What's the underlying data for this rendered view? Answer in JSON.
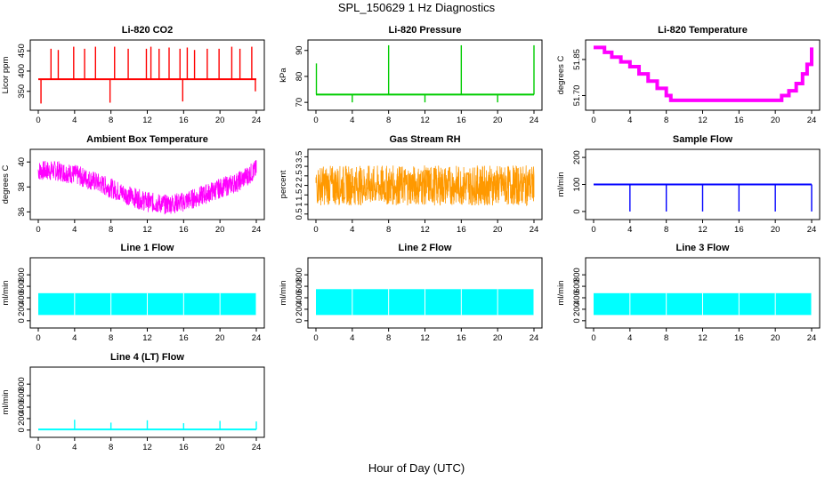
{
  "title": "SPL_150629  1 Hz Diagnostics",
  "xlabel": "Hour of Day (UTC)",
  "chart_data": [
    {
      "type": "line",
      "title": "Li-820 CO2",
      "ylabel": "Licor ppm",
      "color": "#ff0000",
      "xlim": [
        0,
        24
      ],
      "ylim": [
        310,
        470
      ],
      "yticks": [
        350,
        400,
        450
      ],
      "xticks": [
        0,
        4,
        8,
        12,
        16,
        20,
        24
      ],
      "baseline": 380,
      "spikes": [
        [
          0.3,
          320
        ],
        [
          1.4,
          455
        ],
        [
          2.2,
          452
        ],
        [
          3.9,
          460
        ],
        [
          5.1,
          455
        ],
        [
          6.3,
          460
        ],
        [
          7.9,
          322
        ],
        [
          8.4,
          460
        ],
        [
          9.9,
          455
        ],
        [
          11.9,
          455
        ],
        [
          12.4,
          460
        ],
        [
          13.3,
          455
        ],
        [
          14.4,
          458
        ],
        [
          15.6,
          455
        ],
        [
          15.9,
          325
        ],
        [
          16.4,
          458
        ],
        [
          17.2,
          452
        ],
        [
          18.6,
          455
        ],
        [
          19.9,
          455
        ],
        [
          21.3,
          460
        ],
        [
          22.2,
          455
        ],
        [
          23.5,
          460
        ],
        [
          23.9,
          350
        ]
      ]
    },
    {
      "type": "line",
      "title": "Li-820 Pressure",
      "ylabel": "kPa",
      "color": "#00cc00",
      "xlim": [
        0,
        24
      ],
      "ylim": [
        68,
        93
      ],
      "yticks": [
        70,
        80,
        90
      ],
      "xticks": [
        0,
        4,
        8,
        12,
        16,
        20,
        24
      ],
      "baseline": 73,
      "spikes": [
        [
          0.05,
          85
        ],
        [
          4.0,
          70
        ],
        [
          8.0,
          92
        ],
        [
          12.0,
          70
        ],
        [
          16.0,
          92
        ],
        [
          20.0,
          70
        ],
        [
          24.0,
          92
        ]
      ]
    },
    {
      "type": "step",
      "title": "Li-820 Temperature",
      "ylabel": "degrees C",
      "color": "#ff00ff",
      "xlim": [
        0,
        24
      ],
      "ylim": [
        51.65,
        51.92
      ],
      "yticks": [
        51.7,
        51.85
      ],
      "ytick_labels": [
        "51.70",
        "51.85"
      ],
      "xticks": [
        0,
        4,
        8,
        12,
        16,
        20,
        24
      ],
      "x": [
        0.0,
        0.5,
        1.2,
        2.0,
        3.0,
        4.0,
        5.0,
        6.0,
        7.0,
        8.0,
        8.5,
        12,
        16,
        20.0,
        20.7,
        21.5,
        22.3,
        23.0,
        23.5,
        24.0
      ],
      "y": [
        51.9,
        51.9,
        51.88,
        51.86,
        51.84,
        51.82,
        51.79,
        51.76,
        51.73,
        51.7,
        51.68,
        51.68,
        51.68,
        51.68,
        51.7,
        51.72,
        51.75,
        51.79,
        51.83,
        51.9
      ]
    },
    {
      "type": "line",
      "title": "Ambient Box Temperature",
      "ylabel": "degrees C",
      "color": "#ff00ff",
      "xlim": [
        0,
        24
      ],
      "ylim": [
        35.6,
        40.8
      ],
      "yticks": [
        36,
        38,
        40
      ],
      "xticks": [
        0,
        4,
        8,
        12,
        16,
        20,
        24
      ],
      "x": [
        0,
        2,
        4,
        6,
        8,
        10,
        12,
        14,
        16,
        18,
        20,
        22,
        24
      ],
      "y": [
        39.3,
        39.3,
        39.0,
        38.5,
        37.9,
        37.3,
        36.8,
        36.6,
        36.8,
        37.3,
        37.9,
        38.4,
        39.4
      ],
      "spread": 0.9
    },
    {
      "type": "line",
      "title": "Gas Stream RH",
      "ylabel": "percent",
      "color": "#ff9900",
      "xlim": [
        0,
        24
      ],
      "ylim": [
        0.35,
        3.75
      ],
      "yticks": [
        0.5,
        1.0,
        1.5,
        2.0,
        2.5,
        3.0,
        3.5
      ],
      "xticks": [
        0,
        4,
        8,
        12,
        16,
        20,
        24
      ],
      "baseline": 2.0,
      "spread": 1.5
    },
    {
      "type": "line",
      "title": "Sample Flow",
      "ylabel": "ml/min",
      "color": "#0000ff",
      "xlim": [
        0,
        24
      ],
      "ylim": [
        -20,
        220
      ],
      "yticks": [
        0,
        100,
        200
      ],
      "xticks": [
        0,
        4,
        8,
        12,
        16,
        20,
        24
      ],
      "baseline": 100,
      "spikes": [
        [
          4.0,
          0
        ],
        [
          8.0,
          0
        ],
        [
          12.0,
          0
        ],
        [
          16.0,
          0
        ],
        [
          20.0,
          0
        ],
        [
          24.0,
          0
        ]
      ]
    },
    {
      "type": "area",
      "title": "Line 1 Flow",
      "ylabel": "ml/min",
      "color": "#00ffff",
      "xlim": [
        0,
        24
      ],
      "ylim": [
        -80,
        1050
      ],
      "yticks": [
        0,
        200,
        400,
        600,
        800
      ],
      "xticks": [
        0,
        4,
        8,
        12,
        16,
        20,
        24
      ],
      "band": [
        100,
        480
      ],
      "gaps": [
        4.0,
        8.0,
        12.0,
        16.0,
        20.0,
        24.0
      ]
    },
    {
      "type": "area",
      "title": "Line 2 Flow",
      "ylabel": "ml/min",
      "color": "#00ffff",
      "xlim": [
        0,
        24
      ],
      "ylim": [
        -80,
        1050
      ],
      "yticks": [
        0,
        200,
        400,
        600,
        800
      ],
      "xticks": [
        0,
        4,
        8,
        12,
        16,
        20,
        24
      ],
      "band": [
        100,
        550
      ],
      "gaps": [
        4.0,
        8.0,
        12.0,
        16.0,
        20.0,
        24.0
      ]
    },
    {
      "type": "area",
      "title": "Line 3 Flow",
      "ylabel": "ml/min",
      "color": "#00ffff",
      "xlim": [
        0,
        24
      ],
      "ylim": [
        -80,
        1050
      ],
      "yticks": [
        0,
        200,
        400,
        600,
        800
      ],
      "xticks": [
        0,
        4,
        8,
        12,
        16,
        20,
        24
      ],
      "band": [
        100,
        480
      ],
      "gaps": [
        4.0,
        8.0,
        12.0,
        16.0,
        20.0,
        24.0
      ]
    },
    {
      "type": "line",
      "title": "Line 4 (LT) Flow",
      "ylabel": "ml/min",
      "color": "#00ffff",
      "xlim": [
        0,
        24
      ],
      "ylim": [
        -80,
        1050
      ],
      "yticks": [
        0,
        200,
        400,
        600,
        800
      ],
      "xticks": [
        0,
        4,
        8,
        12,
        16,
        20,
        24
      ],
      "baseline": 10,
      "spikes": [
        [
          4.0,
          180
        ],
        [
          8.0,
          130
        ],
        [
          12.0,
          170
        ],
        [
          16.0,
          120
        ],
        [
          20.0,
          160
        ],
        [
          24.0,
          150
        ]
      ]
    }
  ]
}
